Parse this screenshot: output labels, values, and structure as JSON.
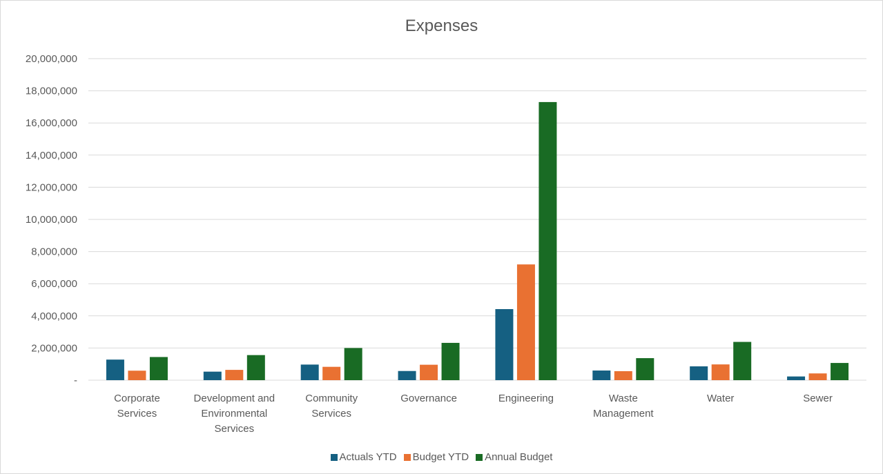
{
  "chart_data": {
    "type": "bar",
    "title": "Expenses",
    "categories": [
      [
        "Corporate",
        "Services"
      ],
      [
        "Development and",
        "Environmental",
        "Services"
      ],
      [
        "Community",
        "Services"
      ],
      [
        "Governance"
      ],
      [
        "Engineering"
      ],
      [
        "Waste",
        "Management"
      ],
      [
        "Water"
      ],
      [
        "Sewer"
      ]
    ],
    "series": [
      {
        "name": "Actuals YTD",
        "color": "#156082",
        "values": [
          1280000,
          530000,
          970000,
          570000,
          4420000,
          600000,
          860000,
          230000
        ]
      },
      {
        "name": "Budget YTD",
        "color": "#E97132",
        "values": [
          590000,
          640000,
          830000,
          960000,
          7200000,
          560000,
          980000,
          420000
        ]
      },
      {
        "name": "Annual Budget",
        "color": "#196B24",
        "values": [
          1440000,
          1560000,
          2000000,
          2320000,
          17300000,
          1370000,
          2380000,
          1070000
        ]
      }
    ],
    "ylim": [
      0,
      20000000
    ],
    "yticks": [
      0,
      2000000,
      4000000,
      6000000,
      8000000,
      10000000,
      12000000,
      14000000,
      16000000,
      18000000,
      20000000
    ],
    "ytick_labels": [
      "-",
      "2,000,000",
      "4,000,000",
      "6,000,000",
      "8,000,000",
      "10,000,000",
      "12,000,000",
      "14,000,000",
      "16,000,000",
      "18,000,000",
      "20,000,000"
    ],
    "grid": true,
    "legend_position": "bottom"
  }
}
